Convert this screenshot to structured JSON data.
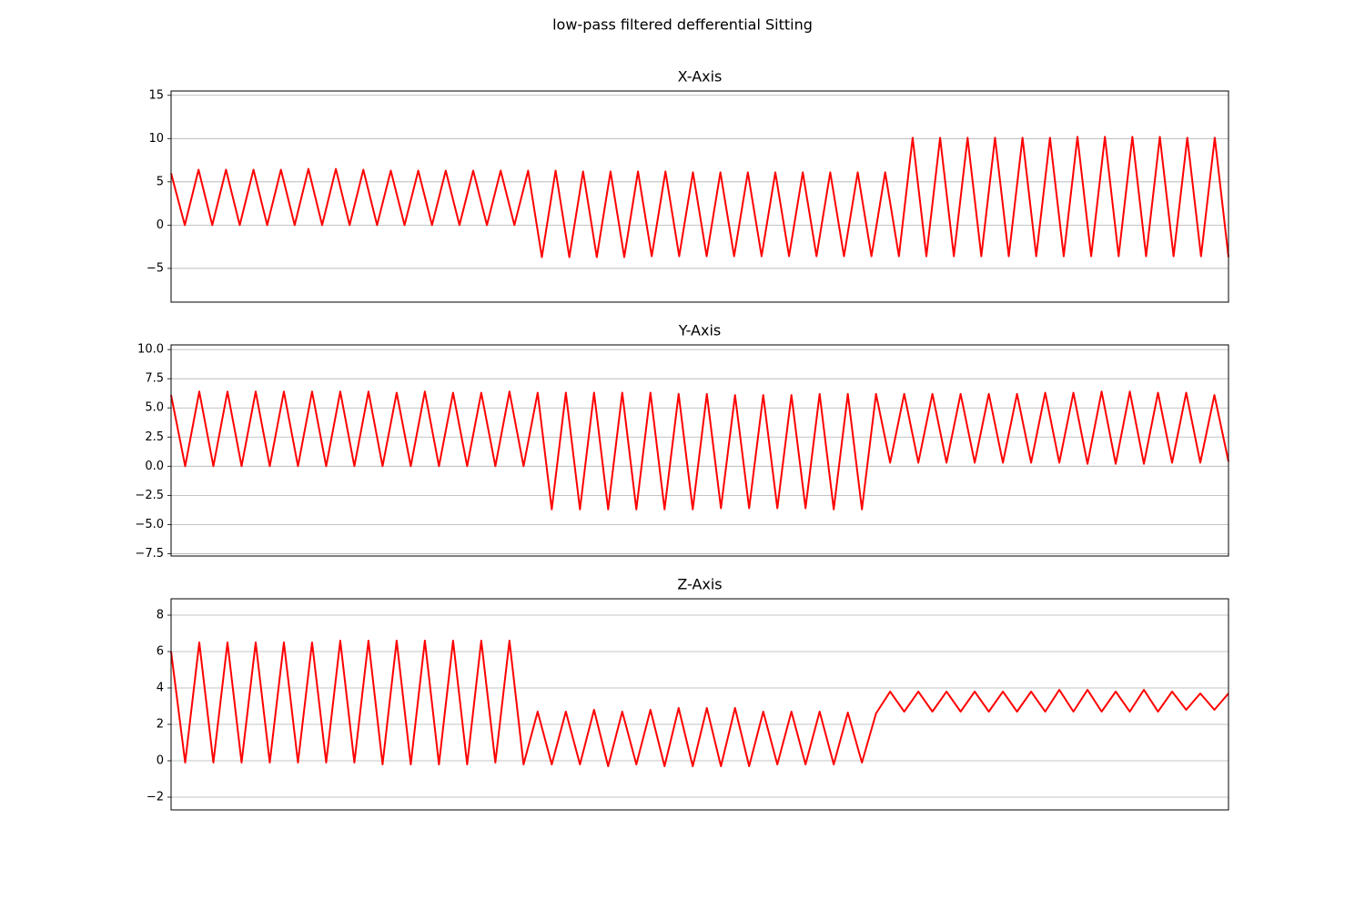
{
  "title": "low-pass filtered defferential Sitting",
  "chart_data": [
    {
      "type": "line",
      "title": "X-Axis",
      "color": "#ff0000",
      "grid": true,
      "ylim": [
        -8.9,
        15.5
      ],
      "yticks": [
        {
          "value": -5,
          "label": "−5"
        },
        0,
        5,
        10,
        15
      ],
      "values": [
        6.0,
        0,
        6.4,
        0,
        6.4,
        0,
        6.4,
        0,
        6.4,
        0,
        6.5,
        0,
        6.5,
        0,
        6.4,
        0,
        6.3,
        0,
        6.3,
        0,
        6.3,
        0,
        6.3,
        0,
        6.3,
        0,
        6.3,
        -3.7,
        6.3,
        -3.7,
        6.2,
        -3.7,
        6.2,
        -3.7,
        6.2,
        -3.6,
        6.2,
        -3.6,
        6.1,
        -3.6,
        6.1,
        -3.6,
        6.1,
        -3.6,
        6.1,
        -3.6,
        6.1,
        -3.6,
        6.1,
        -3.6,
        6.1,
        -3.6,
        6.1,
        -3.6,
        10.1,
        -3.6,
        10.1,
        -3.6,
        10.1,
        -3.6,
        10.1,
        -3.6,
        10.1,
        -3.6,
        10.1,
        -3.6,
        10.2,
        -3.6,
        10.2,
        -3.6,
        10.2,
        -3.6,
        10.2,
        -3.6,
        10.1,
        -3.6,
        10.1,
        -3.7
      ]
    },
    {
      "type": "line",
      "title": "Y-Axis",
      "color": "#ff0000",
      "grid": true,
      "ylim": [
        -7.7,
        10.4
      ],
      "yticks": [
        {
          "value": -7.5,
          "label": "−7.5"
        },
        {
          "value": -5,
          "label": "−5.0"
        },
        {
          "value": -2.5,
          "label": "−2.5"
        },
        {
          "value": 0,
          "label": "0.0"
        },
        2.5,
        {
          "value": 5,
          "label": "5.0"
        },
        7.5,
        {
          "value": 10,
          "label": "10.0"
        }
      ],
      "values": [
        6.1,
        0,
        6.4,
        0,
        6.4,
        0,
        6.4,
        0,
        6.4,
        0,
        6.4,
        0,
        6.4,
        0,
        6.4,
        0,
        6.3,
        0,
        6.4,
        0,
        6.3,
        0,
        6.3,
        0,
        6.4,
        0,
        6.3,
        -3.7,
        6.3,
        -3.7,
        6.3,
        -3.7,
        6.3,
        -3.7,
        6.3,
        -3.7,
        6.2,
        -3.7,
        6.2,
        -3.6,
        6.1,
        -3.6,
        6.1,
        -3.6,
        6.1,
        -3.6,
        6.2,
        -3.7,
        6.2,
        -3.7,
        6.2,
        0.3,
        6.2,
        0.3,
        6.2,
        0.3,
        6.2,
        0.3,
        6.2,
        0.3,
        6.2,
        0.3,
        6.3,
        0.3,
        6.3,
        0.2,
        6.4,
        0.2,
        6.4,
        0.2,
        6.3,
        0.3,
        6.3,
        0.3,
        6.1,
        0.4
      ]
    },
    {
      "type": "line",
      "title": "Z-Axis",
      "color": "#ff0000",
      "grid": true,
      "ylim": [
        -2.7,
        8.9
      ],
      "yticks": [
        {
          "value": -2,
          "label": "−2"
        },
        0,
        2,
        4,
        6,
        8
      ],
      "values": [
        6.0,
        -0.1,
        6.5,
        -0.1,
        6.5,
        -0.1,
        6.5,
        -0.1,
        6.5,
        -0.1,
        6.5,
        -0.1,
        6.6,
        -0.1,
        6.6,
        -0.2,
        6.6,
        -0.2,
        6.6,
        -0.2,
        6.6,
        -0.2,
        6.6,
        -0.1,
        6.6,
        -0.2,
        2.7,
        -0.2,
        2.7,
        -0.2,
        2.8,
        -0.3,
        2.7,
        -0.2,
        2.8,
        -0.3,
        2.9,
        -0.3,
        2.9,
        -0.3,
        2.9,
        -0.3,
        2.7,
        -0.2,
        2.7,
        -0.2,
        2.7,
        -0.2,
        2.65,
        -0.1,
        2.6,
        3.8,
        2.7,
        3.8,
        2.7,
        3.8,
        2.7,
        3.8,
        2.7,
        3.8,
        2.7,
        3.8,
        2.7,
        3.9,
        2.7,
        3.9,
        2.7,
        3.8,
        2.7,
        3.9,
        2.7,
        3.8,
        2.8,
        3.7,
        2.8,
        3.7
      ]
    }
  ]
}
